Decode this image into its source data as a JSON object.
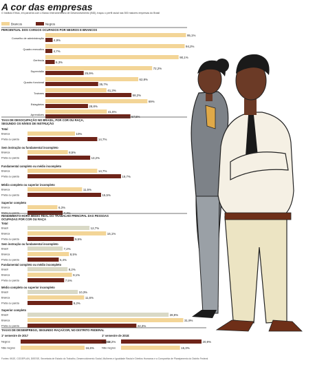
{
  "header": {
    "title": "A cor das empresas",
    "subtitle": "O Instituto Ethos, em parceria com o Banco Interamericano de Desenvolvimento (BID), traçou o perfil racial nas 500 maiores empresas do Brasil"
  },
  "colors": {
    "brancos": "#f3d597",
    "negros": "#6e2419",
    "neutral": "#d9d9c6"
  },
  "chart_data": [
    {
      "type": "bar",
      "title": "PERCENTUAL DOS CARGOS OCUPADOS POR NEGROS E BRANCOS",
      "legend": [
        "Brancos",
        "Negros"
      ],
      "categories": [
        "Conselho de administração",
        "Quadro executivo",
        "Gerência",
        "Supervisão",
        "Quadro funcional",
        "Trainees",
        "Estagiários",
        "Aprendizes"
      ],
      "series": [
        {
          "name": "Brancos",
          "values": [
            95.1,
            94.2,
            90.1,
            72.2,
            62.8,
            41.3,
            69,
            41.6
          ],
          "labels": [
            "95,1%",
            "94,2%",
            "90,1%",
            "72,2%",
            "62,8%",
            "41,3%",
            "69%",
            "41,6%"
          ]
        },
        {
          "name": "Negros",
          "values": [
            4.9,
            4.7,
            6.3,
            25.9,
            35.7,
            58.2,
            28.8,
            57.5
          ],
          "labels": [
            "4,9%",
            "4,7%",
            "6,3%",
            "25,9%",
            "35,7%",
            "58,2%",
            "28,8%",
            "57,5%"
          ]
        }
      ]
    },
    {
      "type": "bar",
      "title": "TAXA DE DESOCUPAÇÃO NO BRASIL, POR COR OU RAÇA, SEGUNDO OS NÍVEIS DE INSTRUÇÃO",
      "groups": [
        {
          "name": "Total",
          "rows": [
            {
              "label": "Branca",
              "value": 10,
              "text": "10%"
            },
            {
              "label": "Preta ou parda",
              "value": 14.7,
              "text": "14,7%"
            }
          ]
        },
        {
          "name": "Sem instrução ou fundamental incompleto",
          "rows": [
            {
              "label": "Branca",
              "value": 8.5,
              "text": "8,5%"
            },
            {
              "label": "Preta ou parda",
              "value": 13.2,
              "text": "13,2%"
            }
          ]
        },
        {
          "name": "Fundamental completo ou médio incompleto",
          "rows": [
            {
              "label": "Branca",
              "value": 14.7,
              "text": "14,7%"
            },
            {
              "label": "Preta ou parda",
              "value": 19.7,
              "text": "19,7%"
            }
          ]
        },
        {
          "name": "Médio completo ou superior incompleto",
          "rows": [
            {
              "label": "Branca",
              "value": 11.5,
              "text": "11,5%"
            },
            {
              "label": "Preta ou parda",
              "value": 15.5,
              "text": "15,5%"
            }
          ]
        },
        {
          "name": "Superior completo",
          "rows": [
            {
              "label": "Branca",
              "value": 6.3,
              "text": "6,3%"
            },
            {
              "label": "Preta ou parda",
              "value": 7.4,
              "text": "7,4%"
            }
          ]
        }
      ]
    },
    {
      "type": "bar",
      "title": "RENDIMENTO-HORA MÉDIO REAL DO TRABALHO PRINCIPAL DAS PESSOAS OCUPADAS POR COR OU RAÇA",
      "groups": [
        {
          "name": "Total",
          "rows": [
            {
              "label": "Brasil",
              "value": 12.7,
              "text": "12,7%"
            },
            {
              "label": "Branca",
              "value": 16.1,
              "text": "16,1%"
            },
            {
              "label": "Preta ou parda",
              "value": 9.5,
              "text": "9,5%"
            }
          ]
        },
        {
          "name": "Sem instrução ou fundamental incompleto",
          "rows": [
            {
              "label": "Brasil",
              "value": 7.2,
              "text": "7,2%"
            },
            {
              "label": "Branca",
              "value": 8.5,
              "text": "8,5%"
            },
            {
              "label": "Preta ou parda",
              "value": 6.4,
              "text": "6,4%"
            }
          ]
        },
        {
          "name": "Fundamental completo ou médio incompleto",
          "rows": [
            {
              "label": "Brasil",
              "value": 8.2,
              "text": "8,2%"
            },
            {
              "label": "Branca",
              "value": 9.1,
              "text": "9,1%"
            },
            {
              "label": "Preta ou parda",
              "value": 7.5,
              "text": "7,5%"
            }
          ]
        },
        {
          "name": "Médio completo ou superior incompleto",
          "rows": [
            {
              "label": "Brasil",
              "value": 10.3,
              "text": "10,3%"
            },
            {
              "label": "Branca",
              "value": 11.6,
              "text": "11,6%"
            },
            {
              "label": "Preta ou parda",
              "value": 9.2,
              "text": "9,2%"
            }
          ]
        },
        {
          "name": "Superior completo",
          "rows": [
            {
              "label": "Brasil",
              "value": 28.9,
              "text": "28,9%"
            },
            {
              "label": "Branca",
              "value": 31.9,
              "text": "31,9%"
            },
            {
              "label": "Preta ou parda",
              "value": 22.3,
              "text": "22,3%"
            }
          ]
        }
      ]
    },
    {
      "type": "bar",
      "title": "TAXAS DE DESEMPREGO, SEGUNDO RAÇA/COR, NO DISTRITO FEDERAL",
      "panels": [
        {
          "name": "1º semestre de 2017",
          "rows": [
            {
              "label": "Negros",
              "value": 22.2,
              "text": "22,2%"
            },
            {
              "label": "Não negros",
              "value": 16.6,
              "text": "16,6%"
            }
          ]
        },
        {
          "name": "1º semestre de 2018:",
          "rows": [
            {
              "label": "Negros",
              "value": 20.9,
              "text": "20,9%"
            },
            {
              "label": "Não negros",
              "value": 15.3,
              "text": "15,3%"
            }
          ]
        }
      ]
    }
  ],
  "source": "Fontes: IBGE, CODEPLAN, DIEESE, Secretaria de Estado do Trabalho, Desenvolvimento Social, Mulheres e Igualdade Racial e Direitos Humanos e a Companhia de Planejamento do Distrito Federal"
}
